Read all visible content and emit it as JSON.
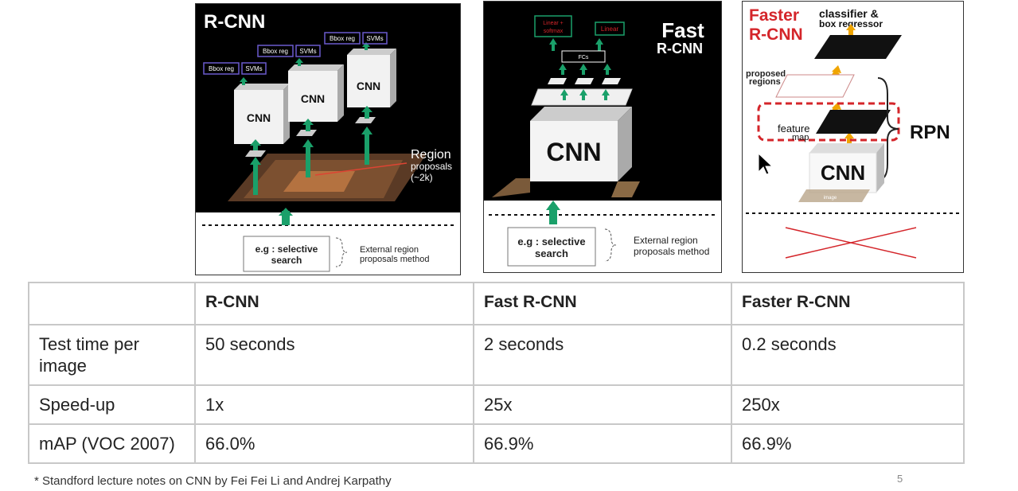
{
  "rcnn_panel": {
    "title": "R-CNN",
    "cnn_label": "CNN",
    "bbox_label": "Bbox reg",
    "svm_label": "SVMs",
    "region_title": "Region",
    "region_sub1": "proposals",
    "region_sub2": "(~2k)",
    "search_line1": "e.g : selective",
    "search_line2": "search",
    "external_line1": "External region",
    "external_line2": "proposals method"
  },
  "fast_panel": {
    "title_line1": "Fast",
    "title_line2": "R-CNN",
    "linear_softmax_line1": "Linear +",
    "linear_softmax_line2": "softmax",
    "linear_label": "Linear",
    "fcs_label": "FCs",
    "cnn_label": "CNN",
    "search_line1": "e.g : selective",
    "search_line2": "search",
    "external_line1": "External region",
    "external_line2": "proposals method"
  },
  "faster_panel": {
    "title_line1": "Faster",
    "title_line2": "R-CNN",
    "classifier_line1": "classifier &",
    "classifier_line2": "box regressor",
    "proposed_line1": "proposed",
    "proposed_line2": "regions",
    "feature_line1": "feature",
    "feature_line2": "map",
    "rpn_label": "RPN",
    "cnn_label": "CNN",
    "image_label": "image"
  },
  "table": {
    "headers": [
      "",
      "R-CNN",
      "Fast R-CNN",
      "Faster R-CNN"
    ],
    "rows": [
      [
        "Test time per image",
        "50 seconds",
        "2 seconds",
        "0.2 seconds"
      ],
      [
        "Speed-up",
        "1x",
        "25x",
        "250x"
      ],
      [
        "mAP (VOC 2007)",
        "66.0%",
        "66.9%",
        "66.9%"
      ]
    ]
  },
  "footnote": "* Standford lecture notes on CNN by Fei Fei Li and Andrej Karpathy",
  "page_number": "5",
  "colors": {
    "green_arrow": "#1aa06a",
    "red_accent": "#d4252a",
    "yellow_arrow": "#f0a500",
    "purple_box": "#6a5acd"
  }
}
